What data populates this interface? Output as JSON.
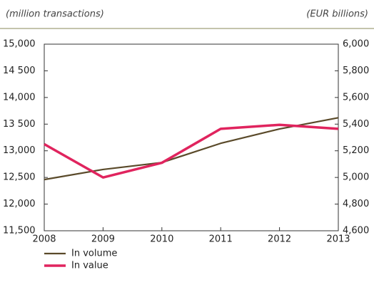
{
  "chart_data": {
    "type": "line",
    "y_unit_label": "(million transactions)",
    "y2_unit_label": "(EUR billions)",
    "categories": [
      "2008",
      "2009",
      "2010",
      "2011",
      "2012",
      "2013"
    ],
    "series": [
      {
        "name": "In volume",
        "color": "#5a4a2a",
        "values": [
          12460,
          12650,
          12780,
          13140,
          13410,
          13620
        ]
      },
      {
        "name": "In value",
        "color": "#e0245e",
        "axis": "y2",
        "values": [
          5250,
          5000,
          5110,
          5365,
          5395,
          5365
        ]
      }
    ],
    "ylim": [
      11500,
      15000
    ],
    "yticks": [
      {
        "value": 11500,
        "label": "11,500"
      },
      {
        "value": 12000,
        "label": "12,000"
      },
      {
        "value": 12500,
        "label": "12,500"
      },
      {
        "value": 13000,
        "label": "13,000"
      },
      {
        "value": 13500,
        "label": "13 500"
      },
      {
        "value": 14000,
        "label": "14,000"
      },
      {
        "value": 14500,
        "label": "14 500"
      },
      {
        "value": 15000,
        "label": "15,000"
      }
    ],
    "y2lim": [
      4600,
      6000
    ],
    "y2ticks": [
      {
        "value": 4600,
        "label": "4,600"
      },
      {
        "value": 4800,
        "label": "4,800"
      },
      {
        "value": 5000,
        "label": "5,000"
      },
      {
        "value": 5200,
        "label": "5,200"
      },
      {
        "value": 5400,
        "label": "5,400"
      },
      {
        "value": 5600,
        "label": "5,600"
      },
      {
        "value": 5800,
        "label": "5,800"
      },
      {
        "value": 6000,
        "label": "6,000"
      }
    ]
  }
}
